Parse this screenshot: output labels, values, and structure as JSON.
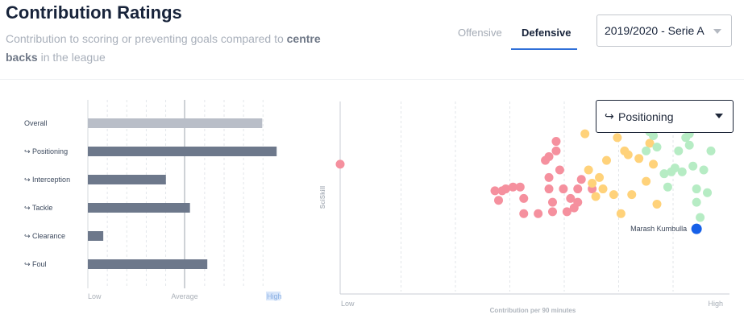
{
  "header": {
    "title": "Contribution Ratings",
    "subtitle_pre": "Contribution to scoring or preventing goals compared to",
    "subtitle_bold": "centre backs",
    "subtitle_post": " in the league"
  },
  "tabs": [
    {
      "label": "Offensive",
      "active": false
    },
    {
      "label": "Defensive",
      "active": true
    }
  ],
  "season_select": {
    "value": "2019/2020 - Serie A"
  },
  "metric_select": {
    "arrow": "↪",
    "value": "Positioning"
  },
  "colors": {
    "accent": "#2f6fd8",
    "bar_overall": "#b9bec8",
    "bar_sub": "#6d788b",
    "dot_low": "#f5909e",
    "dot_mid": "#ffd27a",
    "dot_high": "#b6ecc4",
    "highlight": "#1660e8"
  },
  "chart_data": [
    {
      "type": "bar",
      "orientation": "horizontal",
      "categories": [
        "Overall",
        "↪ Positioning",
        "↪ Interception",
        "↪ Tackle",
        "↪ Clearance",
        "↪ Foul"
      ],
      "values": [
        0.905,
        0.98,
        0.405,
        0.53,
        0.08,
        0.62
      ],
      "x_tick_labels": [
        "Low",
        "Average",
        "High"
      ],
      "xlim": [
        0,
        1
      ]
    },
    {
      "type": "scatter",
      "xlabel": "Contribution per 90 minutes",
      "ylabel": "SciSkill",
      "x_tick_labels": [
        "Low",
        "High"
      ],
      "xlim": [
        0,
        1
      ],
      "ylim": [
        0,
        1
      ],
      "highlight_label": "Marash Kumbulla",
      "points": [
        {
          "x": 0.0,
          "y": 0.67,
          "g": "low"
        },
        {
          "x": 0.43,
          "y": 0.53,
          "g": "low"
        },
        {
          "x": 0.45,
          "y": 0.53,
          "g": "low"
        },
        {
          "x": 0.46,
          "y": 0.54,
          "g": "low"
        },
        {
          "x": 0.44,
          "y": 0.48,
          "g": "low"
        },
        {
          "x": 0.48,
          "y": 0.55,
          "g": "low"
        },
        {
          "x": 0.5,
          "y": 0.55,
          "g": "low"
        },
        {
          "x": 0.51,
          "y": 0.49,
          "g": "low"
        },
        {
          "x": 0.51,
          "y": 0.41,
          "g": "low"
        },
        {
          "x": 0.55,
          "y": 0.41,
          "g": "low"
        },
        {
          "x": 0.57,
          "y": 0.69,
          "g": "low"
        },
        {
          "x": 0.58,
          "y": 0.71,
          "g": "low"
        },
        {
          "x": 0.6,
          "y": 0.74,
          "g": "low"
        },
        {
          "x": 0.6,
          "y": 0.79,
          "g": "low"
        },
        {
          "x": 0.61,
          "y": 0.64,
          "g": "low"
        },
        {
          "x": 0.58,
          "y": 0.6,
          "g": "low"
        },
        {
          "x": 0.58,
          "y": 0.54,
          "g": "low"
        },
        {
          "x": 0.59,
          "y": 0.47,
          "g": "low"
        },
        {
          "x": 0.59,
          "y": 0.42,
          "g": "low"
        },
        {
          "x": 0.62,
          "y": 0.54,
          "g": "low"
        },
        {
          "x": 0.63,
          "y": 0.42,
          "g": "low"
        },
        {
          "x": 0.64,
          "y": 0.49,
          "g": "low"
        },
        {
          "x": 0.65,
          "y": 0.44,
          "g": "low"
        },
        {
          "x": 0.66,
          "y": 0.54,
          "g": "low"
        },
        {
          "x": 0.66,
          "y": 0.47,
          "g": "low"
        },
        {
          "x": 0.67,
          "y": 0.59,
          "g": "low"
        },
        {
          "x": 0.7,
          "y": 0.54,
          "g": "low"
        },
        {
          "x": 0.68,
          "y": 0.83,
          "g": "mid"
        },
        {
          "x": 0.69,
          "y": 0.64,
          "g": "mid"
        },
        {
          "x": 0.7,
          "y": 0.57,
          "g": "mid"
        },
        {
          "x": 0.71,
          "y": 0.5,
          "g": "mid"
        },
        {
          "x": 0.72,
          "y": 0.6,
          "g": "mid"
        },
        {
          "x": 0.73,
          "y": 0.54,
          "g": "mid"
        },
        {
          "x": 0.74,
          "y": 0.69,
          "g": "mid"
        },
        {
          "x": 0.76,
          "y": 0.51,
          "g": "mid"
        },
        {
          "x": 0.77,
          "y": 0.81,
          "g": "mid"
        },
        {
          "x": 0.78,
          "y": 0.41,
          "g": "mid"
        },
        {
          "x": 0.79,
          "y": 0.74,
          "g": "mid"
        },
        {
          "x": 0.8,
          "y": 0.72,
          "g": "mid"
        },
        {
          "x": 0.81,
          "y": 0.51,
          "g": "mid"
        },
        {
          "x": 0.83,
          "y": 0.7,
          "g": "mid"
        },
        {
          "x": 0.85,
          "y": 0.58,
          "g": "mid"
        },
        {
          "x": 0.86,
          "y": 0.78,
          "g": "mid"
        },
        {
          "x": 0.87,
          "y": 0.67,
          "g": "mid"
        },
        {
          "x": 0.88,
          "y": 0.46,
          "g": "mid"
        },
        {
          "x": 0.85,
          "y": 0.74,
          "g": "high"
        },
        {
          "x": 0.86,
          "y": 0.84,
          "g": "high"
        },
        {
          "x": 0.87,
          "y": 0.82,
          "g": "high"
        },
        {
          "x": 0.88,
          "y": 0.76,
          "g": "high"
        },
        {
          "x": 0.9,
          "y": 0.62,
          "g": "high"
        },
        {
          "x": 0.91,
          "y": 0.55,
          "g": "high"
        },
        {
          "x": 0.92,
          "y": 0.63,
          "g": "high"
        },
        {
          "x": 0.93,
          "y": 0.65,
          "g": "high"
        },
        {
          "x": 0.94,
          "y": 0.74,
          "g": "high"
        },
        {
          "x": 0.95,
          "y": 0.63,
          "g": "high"
        },
        {
          "x": 0.96,
          "y": 0.81,
          "g": "high"
        },
        {
          "x": 0.97,
          "y": 0.83,
          "g": "high"
        },
        {
          "x": 0.97,
          "y": 0.77,
          "g": "high"
        },
        {
          "x": 0.98,
          "y": 0.66,
          "g": "high"
        },
        {
          "x": 0.99,
          "y": 0.54,
          "g": "high"
        },
        {
          "x": 0.99,
          "y": 0.47,
          "g": "high"
        },
        {
          "x": 1.0,
          "y": 0.39,
          "g": "high"
        },
        {
          "x": 1.01,
          "y": 0.64,
          "g": "high"
        },
        {
          "x": 1.02,
          "y": 0.52,
          "g": "high"
        },
        {
          "x": 1.03,
          "y": 0.74,
          "g": "high"
        }
      ],
      "highlight": {
        "x": 0.99,
        "y": 0.33
      }
    }
  ]
}
